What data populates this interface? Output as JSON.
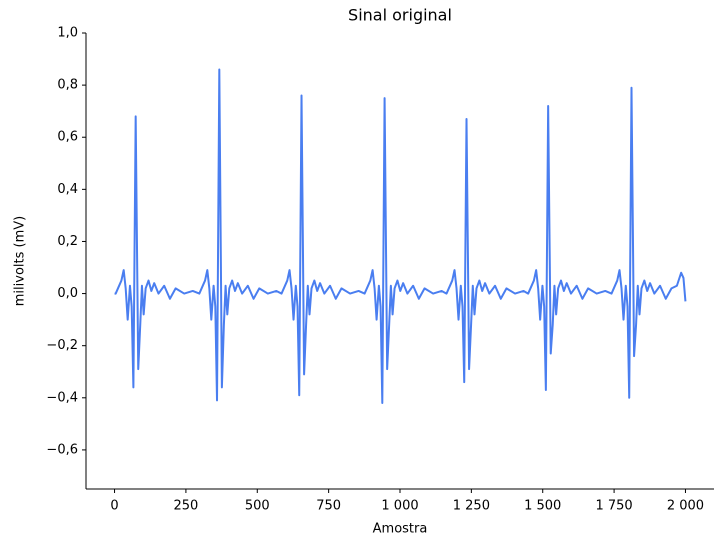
{
  "chart_data": {
    "type": "line",
    "title": "Sinal original",
    "xlabel": "Amostra",
    "ylabel": "milivolts (mV)",
    "color": "#4a7ef0",
    "xlim": [
      -100,
      2100
    ],
    "ylim": [
      -0.75,
      1.0
    ],
    "xticks": [
      0,
      250,
      500,
      750,
      {
        "value": 1000,
        "label": "1 000"
      },
      {
        "value": 1250,
        "label": "1 250"
      },
      {
        "value": 1500,
        "label": "1 500"
      },
      {
        "value": 1750,
        "label": "1 750"
      },
      {
        "value": 2000,
        "label": "2 000"
      }
    ],
    "yticks": [
      {
        "value": -0.6,
        "label": "−0,6"
      },
      {
        "value": -0.4,
        "label": "−0,4"
      },
      {
        "value": -0.2,
        "label": "−0,2"
      },
      {
        "value": 0,
        "label": "0,0"
      },
      {
        "value": 0.2,
        "label": "0,2"
      },
      {
        "value": 0.4,
        "label": "0,4"
      },
      {
        "value": 0.6,
        "label": "0,6"
      },
      {
        "value": 0.8,
        "label": "0,8"
      },
      {
        "value": 1.0,
        "label": "1,0"
      }
    ],
    "x": [
      0,
      4,
      24,
      32,
      39,
      46,
      54,
      60,
      66,
      74,
      83,
      90,
      96,
      102,
      109,
      119,
      129,
      139,
      154,
      174,
      194,
      214,
      244,
      274,
      297,
      317,
      325,
      332,
      339,
      347,
      353,
      359,
      367,
      376,
      383,
      389,
      395,
      402,
      412,
      422,
      432,
      447,
      467,
      487,
      507,
      537,
      567,
      585,
      605,
      613,
      620,
      627,
      635,
      641,
      647,
      655,
      664,
      671,
      677,
      683,
      690,
      700,
      710,
      720,
      735,
      755,
      775,
      795,
      825,
      855,
      876,
      896,
      904,
      911,
      918,
      926,
      932,
      938,
      946,
      955,
      962,
      968,
      974,
      981,
      991,
      1001,
      1011,
      1026,
      1046,
      1066,
      1086,
      1116,
      1146,
      1163,
      1183,
      1191,
      1198,
      1205,
      1213,
      1219,
      1225,
      1233,
      1242,
      1249,
      1255,
      1261,
      1268,
      1278,
      1288,
      1298,
      1313,
      1333,
      1353,
      1373,
      1403,
      1433,
      1449,
      1469,
      1477,
      1484,
      1491,
      1499,
      1505,
      1511,
      1519,
      1528,
      1535,
      1541,
      1547,
      1554,
      1564,
      1574,
      1584,
      1599,
      1619,
      1639,
      1659,
      1689,
      1719,
      1741,
      1761,
      1769,
      1776,
      1783,
      1791,
      1797,
      1803,
      1811,
      1820,
      1827,
      1833,
      1839,
      1846,
      1856,
      1866,
      1876,
      1891,
      1911,
      1931,
      1951,
      1970,
      1985,
      1993,
      2000
    ],
    "values": [
      0.0,
      0.0,
      0.05,
      0.09,
      0.02,
      -0.1,
      0.03,
      -0.05,
      -0.36,
      0.68,
      -0.29,
      -0.12,
      0.03,
      -0.08,
      0.02,
      0.05,
      0.01,
      0.04,
      0.0,
      0.03,
      -0.02,
      0.02,
      0.0,
      0.01,
      0.0,
      0.05,
      0.09,
      0.02,
      -0.1,
      0.03,
      -0.05,
      -0.41,
      0.86,
      -0.36,
      -0.12,
      0.03,
      -0.08,
      0.02,
      0.05,
      0.01,
      0.04,
      0.0,
      0.03,
      -0.02,
      0.02,
      0.0,
      0.01,
      0.0,
      0.05,
      0.09,
      0.02,
      -0.1,
      0.03,
      -0.05,
      -0.39,
      0.76,
      -0.31,
      -0.12,
      0.03,
      -0.08,
      0.02,
      0.05,
      0.01,
      0.04,
      0.0,
      0.03,
      -0.02,
      0.02,
      0.0,
      0.01,
      0.0,
      0.05,
      0.09,
      0.02,
      -0.1,
      0.03,
      -0.05,
      -0.42,
      0.75,
      -0.29,
      -0.12,
      0.03,
      -0.08,
      0.02,
      0.05,
      0.01,
      0.04,
      0.0,
      0.03,
      -0.02,
      0.02,
      0.0,
      0.01,
      0.0,
      0.05,
      0.09,
      0.02,
      -0.1,
      0.03,
      -0.05,
      -0.34,
      0.67,
      -0.29,
      -0.12,
      0.03,
      -0.08,
      0.02,
      0.05,
      0.01,
      0.04,
      0.0,
      0.03,
      -0.02,
      0.02,
      0.0,
      0.01,
      0.0,
      0.05,
      0.09,
      0.02,
      -0.1,
      0.03,
      -0.05,
      -0.37,
      0.72,
      -0.23,
      -0.12,
      0.03,
      -0.08,
      0.02,
      0.05,
      0.01,
      0.04,
      0.0,
      0.03,
      -0.02,
      0.02,
      0.0,
      0.01,
      0.0,
      0.05,
      0.09,
      0.02,
      -0.1,
      0.03,
      -0.05,
      -0.4,
      0.79,
      -0.24,
      -0.12,
      0.03,
      -0.08,
      0.02,
      0.05,
      0.01,
      0.04,
      0.0,
      0.03,
      -0.02,
      0.02,
      0.03,
      0.08,
      0.06,
      -0.03
    ]
  }
}
